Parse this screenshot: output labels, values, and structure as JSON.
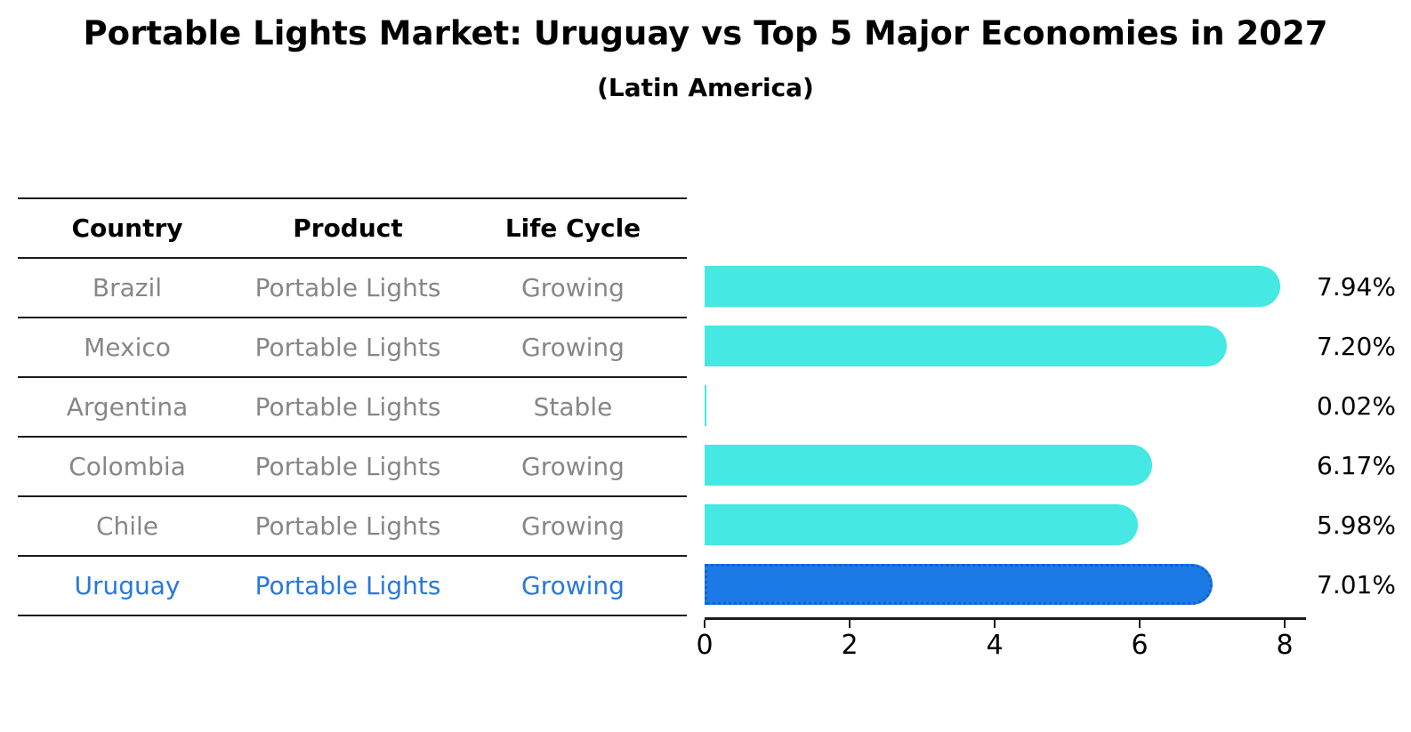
{
  "title": "Portable Lights Market: Uruguay vs Top 5 Major Economies in 2027",
  "subtitle": "(Latin America)",
  "table": {
    "headers": [
      "Country",
      "Product",
      "Life Cycle"
    ],
    "rows": [
      {
        "country": "Brazil",
        "product": "Portable Lights",
        "life_cycle": "Growing",
        "highlight": false
      },
      {
        "country": "Mexico",
        "product": "Portable Lights",
        "life_cycle": "Growing",
        "highlight": false
      },
      {
        "country": "Argentina",
        "product": "Portable Lights",
        "life_cycle": "Stable",
        "highlight": false
      },
      {
        "country": "Colombia",
        "product": "Portable Lights",
        "life_cycle": "Growing",
        "highlight": false
      },
      {
        "country": "Chile",
        "product": "Portable Lights",
        "life_cycle": "Growing",
        "highlight": false
      },
      {
        "country": "Uruguay",
        "product": "Portable Lights",
        "life_cycle": "Growing",
        "highlight": true
      }
    ]
  },
  "chart_data": {
    "type": "bar",
    "orientation": "horizontal",
    "title": "Portable Lights Market: Uruguay vs Top 5 Major Economies in 2027",
    "subtitle": "(Latin America)",
    "categories": [
      "Brazil",
      "Mexico",
      "Argentina",
      "Colombia",
      "Chile",
      "Uruguay"
    ],
    "values": [
      7.94,
      7.2,
      0.02,
      6.17,
      5.98,
      7.01
    ],
    "value_labels": [
      "7.94%",
      "7.20%",
      "0.02%",
      "6.17%",
      "5.98%",
      "7.01%"
    ],
    "xlim": [
      0,
      8.3
    ],
    "xticks": [
      0,
      2,
      4,
      6,
      8
    ],
    "grid": false,
    "legend": "none",
    "bar_color": "#45E8E3",
    "highlight_index": 5,
    "highlight_color": "#1B7AE6",
    "highlight_edge_color": "#0E63D5",
    "highlight_text_color": "#2878DC",
    "axis_color": "#1c1c1c",
    "label_color": "#000000",
    "table_text_color": "#878787"
  }
}
